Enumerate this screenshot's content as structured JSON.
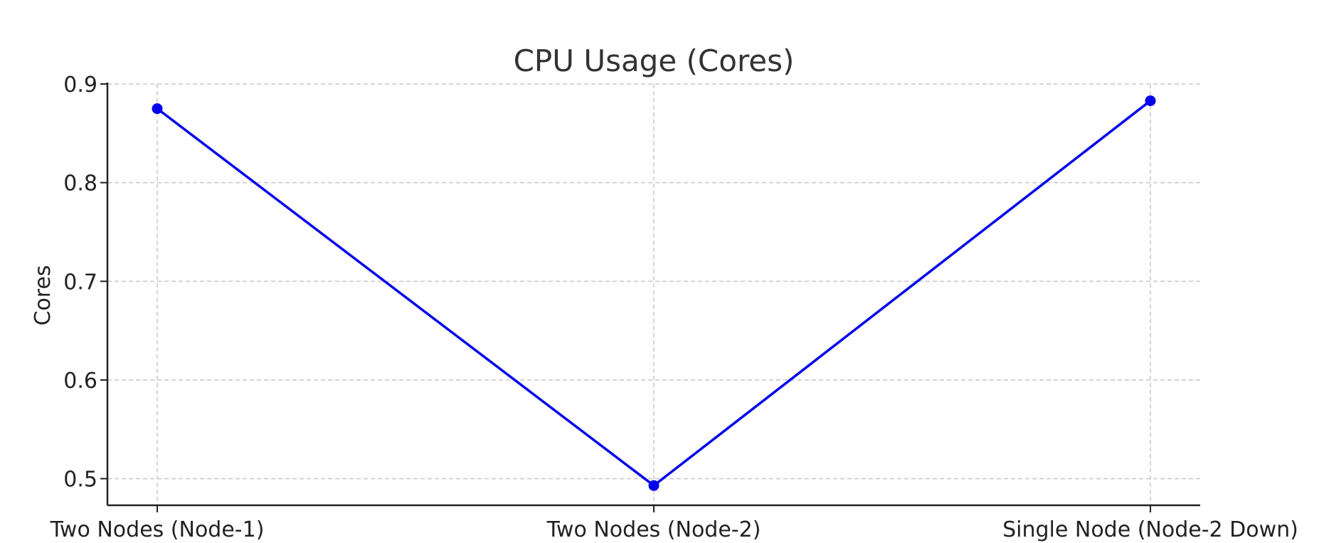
{
  "chart_data": {
    "type": "line",
    "title": "CPU Usage (Cores)",
    "xlabel": "",
    "ylabel": "Cores",
    "categories": [
      "Two Nodes (Node-1)",
      "Two Nodes (Node-2)",
      "Single Node (Node-2 Down)"
    ],
    "series": [
      {
        "values": [
          0.875,
          0.493,
          0.883
        ],
        "color": "#0000ee"
      }
    ],
    "ylim": [
      0.473,
      0.9
    ],
    "yticks": [
      0.5,
      0.6,
      0.7,
      0.8,
      0.9
    ],
    "ytick_labels": [
      "0.5",
      "0.6",
      "0.7",
      "0.8",
      "0.9"
    ],
    "grid": true,
    "marker": "circle"
  }
}
